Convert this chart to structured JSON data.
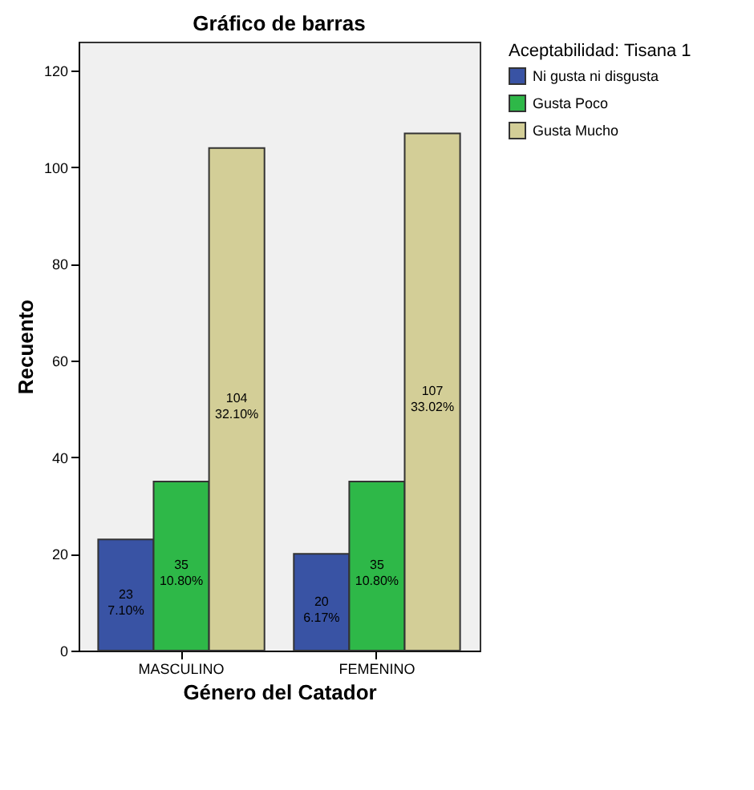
{
  "chart_data": {
    "type": "bar",
    "title": "Gráfico de barras",
    "xlabel": "Género del Catador",
    "ylabel": "Recuento",
    "legend_title": "Aceptabilidad: Tisana 1",
    "categories": [
      "MASCULINO",
      "FEMENINO"
    ],
    "series": [
      {
        "name": "Ni gusta ni disgusta",
        "color": "#3953a4",
        "values": [
          23,
          20
        ],
        "value_labels": [
          "23\n7.10%",
          "20\n6.17%"
        ]
      },
      {
        "name": "Gusta Poco",
        "color": "#2eb848",
        "values": [
          35,
          35
        ],
        "value_labels": [
          "35\n10.80%",
          "35\n10.80%"
        ]
      },
      {
        "name": "Gusta Mucho",
        "color": "#d3ce97",
        "values": [
          104,
          107
        ],
        "value_labels": [
          "104\n32.10%",
          "107\n33.02%"
        ]
      }
    ],
    "ylim": [
      0,
      126
    ],
    "yticks": [
      0,
      20,
      40,
      60,
      80,
      100,
      120
    ],
    "grid": false,
    "legend": "top right"
  }
}
